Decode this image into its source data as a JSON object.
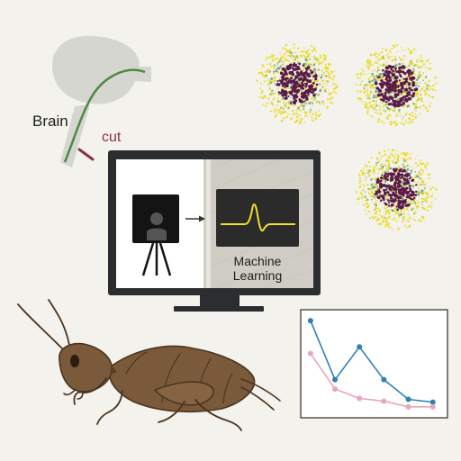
{
  "labels": {
    "brain": "Brain",
    "cut": "cut",
    "machine_learning": "Machine Learning"
  },
  "colors": {
    "background": "#f3f2ec",
    "brain_fill": "#d6d6d1",
    "nerve_green": "#4e8a44",
    "cut_red": "#8e2d4e",
    "monitor_frame": "#2b2d30",
    "screen_dark": "#2b2b2b",
    "waveform_yellow": "#f1dd2a",
    "cluster_yellow": "#ecdc2c",
    "cluster_purple": "#5a1a4a",
    "cricket_brown": "#7a5a3a",
    "blue_series": "#2e80b8",
    "pink_series": "#e8a7b6"
  },
  "icons": [
    "brain",
    "nerve-cord",
    "monitor",
    "camera-on-tripod",
    "waveform",
    "spike-cluster",
    "cricket"
  ],
  "chart_data": {
    "type": "line",
    "title": "",
    "xlabel": "",
    "ylabel": "",
    "grid": false,
    "x": [
      1,
      2,
      3,
      4,
      5,
      6
    ],
    "xlim": [
      0.6,
      6.6
    ],
    "ylim": [
      0,
      1
    ],
    "series": [
      {
        "color": "#2e80b8",
        "values": [
          0.96,
          0.33,
          0.68,
          0.33,
          0.12,
          0.09
        ]
      },
      {
        "color": "#e8a7b6",
        "values": [
          0.61,
          0.23,
          0.13,
          0.1,
          0.04,
          0.04
        ]
      }
    ]
  }
}
